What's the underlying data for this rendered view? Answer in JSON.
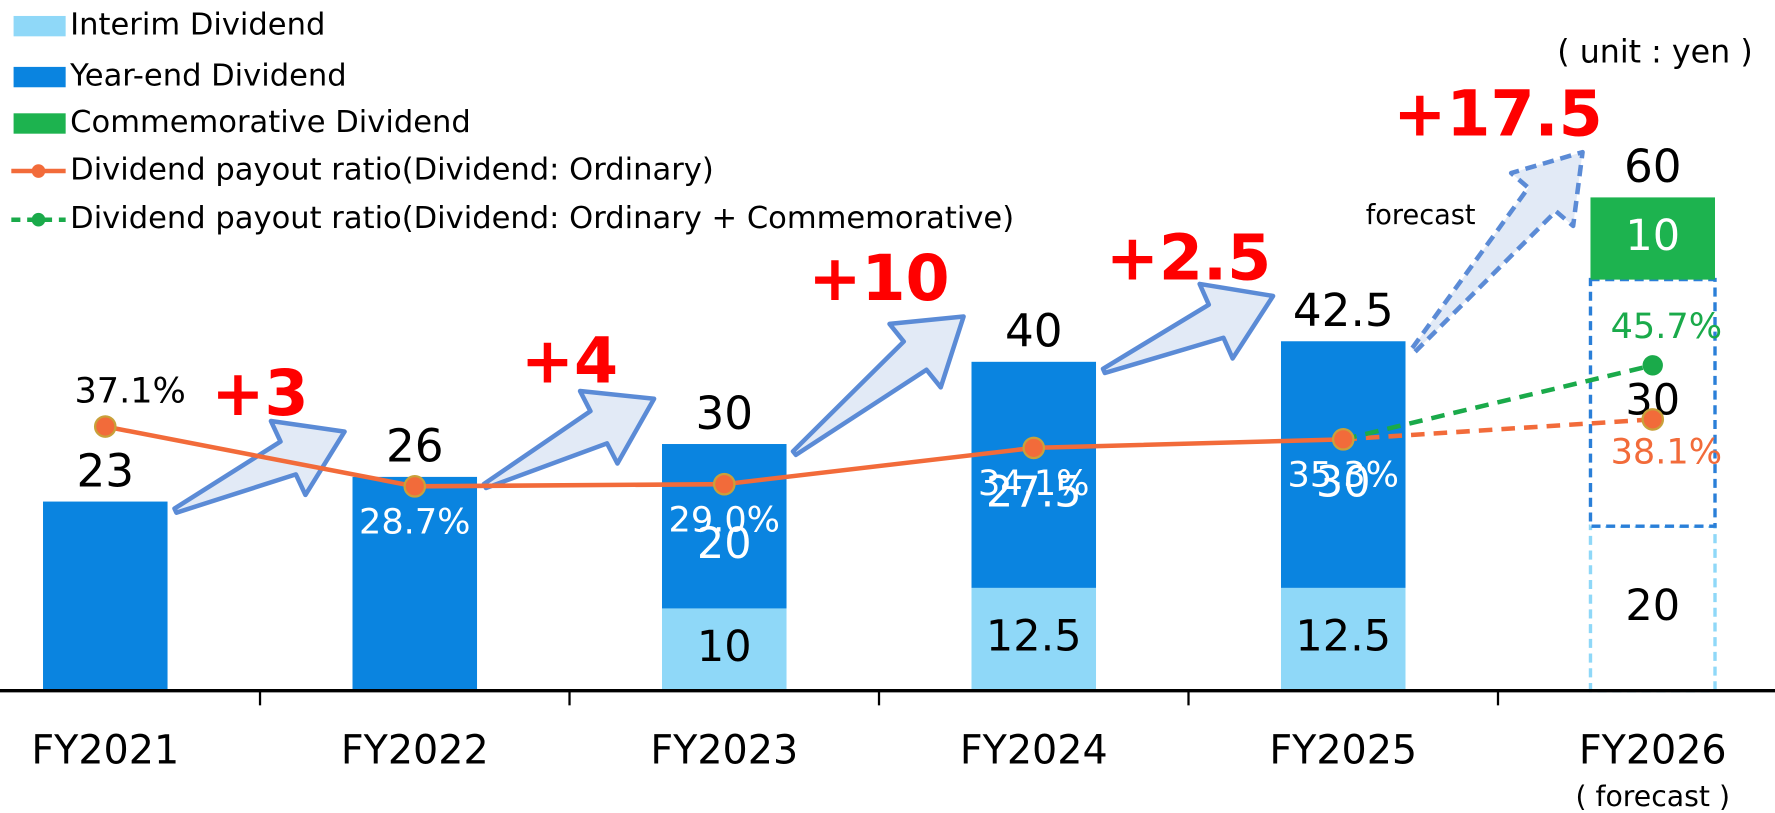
{
  "chart_data": {
    "type": "bar",
    "categories": [
      "FY2021",
      "FY2022",
      "FY2023",
      "FY2024",
      "FY2025",
      "FY2026"
    ],
    "category_notes": [
      null,
      null,
      null,
      null,
      null,
      "( forecast )"
    ],
    "unit_label": "( unit : yen )",
    "forecast_note": "forecast",
    "series": [
      {
        "name": "Interim Dividend",
        "color": "#8fd8f8",
        "values": [
          null,
          null,
          10,
          12.5,
          12.5,
          20
        ]
      },
      {
        "name": "Year-end Dividend",
        "color": "#0a84e0",
        "values": [
          23,
          26,
          20,
          27.5,
          30,
          30
        ]
      },
      {
        "name": "Commemorative Dividend",
        "color": "#1db34f",
        "values": [
          null,
          null,
          null,
          null,
          null,
          10
        ]
      }
    ],
    "totals": [
      23,
      26,
      30,
      40,
      42.5,
      60
    ],
    "line_series": [
      {
        "name": "Dividend payout ratio(Dividend: Ordinary)",
        "color": "#f26b3a",
        "axis": "y2",
        "values": [
          37.1,
          28.7,
          29.0,
          34.1,
          35.3,
          38.1
        ],
        "value_labels": [
          "37.1%",
          "28.7%",
          "29.0%",
          "34.1%",
          "35.3%",
          "38.1%"
        ]
      },
      {
        "name": "Dividend payout ratio(Dividend: Ordinary + Commemorative)",
        "color": "#1aaa4a",
        "axis": "y2",
        "values": [
          null,
          null,
          null,
          null,
          35.3,
          45.7
        ],
        "value_labels": [
          null,
          null,
          null,
          null,
          null,
          "45.7%"
        ]
      }
    ],
    "annotations": [
      "+3",
      "+4",
      "+10",
      "+2.5",
      "+17.5"
    ],
    "ylim": [
      0,
      84
    ],
    "y2lim": [
      0,
      97
    ]
  }
}
